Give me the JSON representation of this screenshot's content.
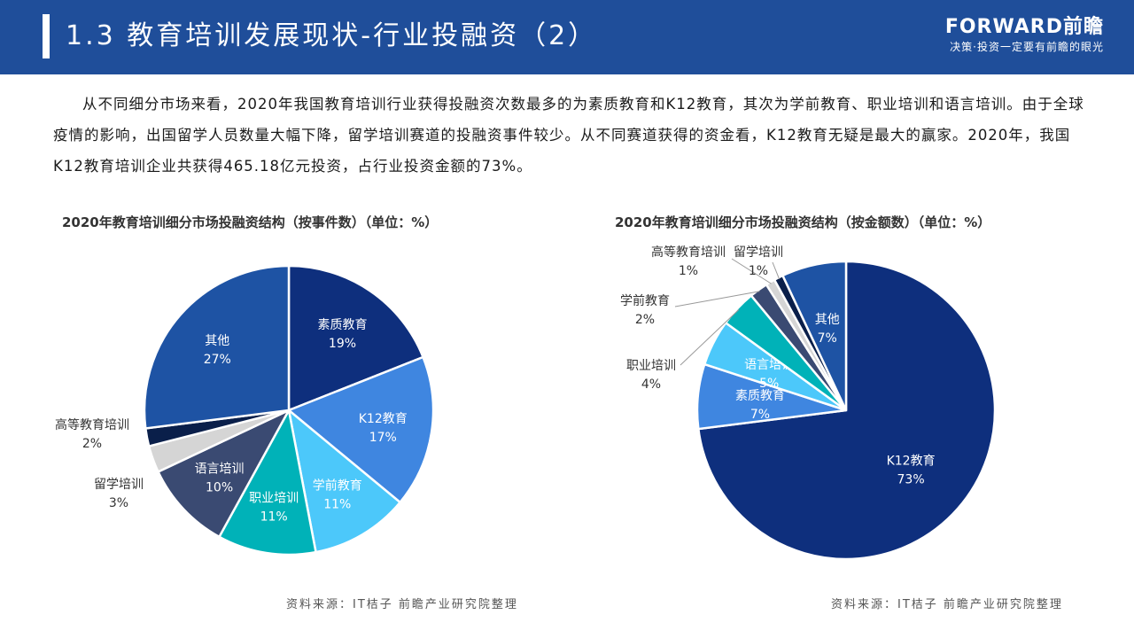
{
  "header": {
    "title": "1.3 教育培训发展现状-行业投融资（2）",
    "brand_name": "FORWARD前瞻",
    "brand_slogan": "决策·投资一定要有前瞻的眼光",
    "background_color": "#1f4e9a"
  },
  "intro_text": "从不同细分市场来看，2020年我国教育培训行业获得投融资次数最多的为素质教育和K12教育，其次为学前教育、职业培训和语言培训。由于全球疫情的影响，出国留学人员数量大幅下降，留学培训赛道的投融资事件较少。从不同赛道获得的资金看，K12教育无疑是最大的赢家。2020年，我国K12教育培训企业共获得465.18亿元投资，占行业投资金额的73%。",
  "chart_data": [
    {
      "type": "pie",
      "title": "2020年教育培训细分市场投融资结构（按事件数）（单位：%）",
      "slices": [
        {
          "label": "素质教育",
          "value_label": "19%",
          "value": 19,
          "color": "#0e2f7d"
        },
        {
          "label": "K12教育",
          "value_label": "17%",
          "value": 17,
          "color": "#3f86e0"
        },
        {
          "label": "学前教育",
          "value_label": "11%",
          "value": 11,
          "color": "#4cc8fa"
        },
        {
          "label": "职业培训",
          "value_label": "11%",
          "value": 11,
          "color": "#00b2b8"
        },
        {
          "label": "语言培训",
          "value_label": "10%",
          "value": 10,
          "color": "#3a4a72"
        },
        {
          "label": "留学培训",
          "value_label": "3%",
          "value": 3,
          "color": "#d5d5d5"
        },
        {
          "label": "高等教育培训",
          "value_label": "2%",
          "value": 2,
          "color": "#0a1f4a"
        },
        {
          "label": "其他",
          "value_label": "27%",
          "value": 27,
          "color": "#1e53a4"
        }
      ]
    },
    {
      "type": "pie",
      "title": "2020年教育培训细分市场投融资结构（按金额数）（单位：%）",
      "slices": [
        {
          "label": "K12教育",
          "value_label": "73%",
          "value": 73,
          "color": "#0e2f7d"
        },
        {
          "label": "素质教育",
          "value_label": "7%",
          "value": 7,
          "color": "#3f86e0"
        },
        {
          "label": "语言培训",
          "value_label": "5%",
          "value": 5,
          "color": "#4cc8fa"
        },
        {
          "label": "职业培训",
          "value_label": "4%",
          "value": 4,
          "color": "#00b2b8"
        },
        {
          "label": "学前教育",
          "value_label": "2%",
          "value": 2,
          "color": "#3a4a72"
        },
        {
          "label": "高等教育培训",
          "value_label": "1%",
          "value": 1,
          "color": "#d5d5d5"
        },
        {
          "label": "留学培训",
          "value_label": "1%",
          "value": 1,
          "color": "#0a1f4a"
        },
        {
          "label": "其他",
          "value_label": "7%",
          "value": 7,
          "color": "#1e53a4"
        }
      ]
    }
  ],
  "sources": {
    "left": "资料来源：IT桔子 前瞻产业研究院整理",
    "right": "资料来源：IT桔子 前瞻产业研究院整理"
  }
}
